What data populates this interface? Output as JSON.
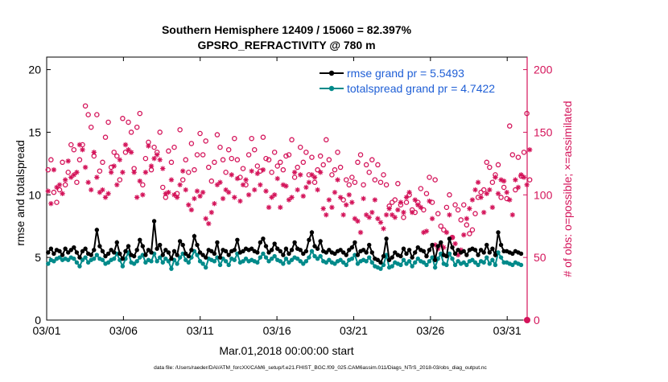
{
  "chart_data": {
    "type": "line",
    "title": "Southern Hemisphere 12409 / 15060 = 82.397%",
    "subtitle": "GPSRO_REFRACTIVITY @ 780 m",
    "xlabel": "Mar.01,2018 00:00:00 start",
    "ylabel_left": "rmse and totalspread",
    "ylabel_right": "# of obs: o=possible; ×=assimilated",
    "footer": "data file: /Users/raeder/DAI/ATM_forcXX/CAM6_setup/f.e21.FHIST_BGC.f09_025.CAM6assim.011/Diags_NTrS_2018-03/obs_diag_output.nc",
    "xlim": [
      1,
      32.3
    ],
    "ylim_left": [
      0,
      21
    ],
    "ylim_right": [
      0,
      210
    ],
    "x_ticks": [
      1,
      6,
      11,
      16,
      21,
      26,
      31
    ],
    "x_tick_labels": [
      "03/01",
      "03/06",
      "03/11",
      "03/16",
      "03/21",
      "03/26",
      "03/31"
    ],
    "y_left_ticks": [
      "0",
      "5",
      "10",
      "15",
      "20"
    ],
    "y_right_ticks": [
      "0",
      "50",
      "100",
      "150",
      "200"
    ],
    "series": [
      {
        "name": "rmse grand pr = 5.5493",
        "color": "#000000",
        "axis": "left",
        "values": [
          5.4,
          5.7,
          5.3,
          5.6,
          5.5,
          5.2,
          5.7,
          5.4,
          5.6,
          5.8,
          5.4,
          5.0,
          5.5,
          5.7,
          5.3,
          5.2,
          5.6,
          7.2,
          5.9,
          5.5,
          5.1,
          5.3,
          5.6,
          5.4,
          6.2,
          5.3,
          4.9,
          5.5,
          5.9,
          5.2,
          5.1,
          5.6,
          6.4,
          5.9,
          5.2,
          5.6,
          5.4,
          7.9,
          5.7,
          6.0,
          5.2,
          5.6,
          5.4,
          4.9,
          5.5,
          5.2,
          6.3,
          6.0,
          5.3,
          5.1,
          5.6,
          6.7,
          6.0,
          5.4,
          5.2,
          5.0,
          5.6,
          5.5,
          5.3,
          6.2,
          5.0,
          5.6,
          5.5,
          5.2,
          5.5,
          5.6,
          6.4,
          5.4,
          5.5,
          5.7,
          5.6,
          5.7,
          5.5,
          5.4,
          6.2,
          6.5,
          5.9,
          5.4,
          5.6,
          6.1,
          5.7,
          5.5,
          5.2,
          5.7,
          5.3,
          5.6,
          6.2,
          5.7,
          5.6,
          5.3,
          5.5,
          6.4,
          7.0,
          5.9,
          5.7,
          6.3,
          5.5,
          5.4,
          5.6,
          5.4,
          5.3,
          5.5,
          5.6,
          5.4,
          5.2,
          5.6,
          5.8,
          6.2,
          5.2,
          5.5,
          5.6,
          5.4,
          6.0,
          5.4,
          4.9,
          4.8,
          4.6,
          5.1,
          6.5,
          4.8,
          5.0,
          5.4,
          5.2,
          5.1,
          5.7,
          5.3,
          5.6,
          5.0,
          5.4,
          5.8,
          5.6,
          5.5,
          5.1,
          5.6,
          6.0,
          4.8,
          5.9,
          6.2,
          5.2,
          5.1,
          6.5,
          5.8,
          5.3,
          5.6,
          5.4,
          5.5,
          5.2,
          5.6,
          5.7,
          5.6,
          5.2,
          5.6,
          5.4,
          6.0,
          5.4,
          5.7,
          5.2,
          7.0,
          6.0,
          5.5,
          5.5,
          5.4,
          5.3,
          5.5,
          5.4,
          5.3
        ]
      },
      {
        "name": "totalspread grand pr = 4.7422",
        "color": "#008a8a",
        "axis": "left",
        "values": [
          4.5,
          4.8,
          4.7,
          4.9,
          5.0,
          4.8,
          4.9,
          4.8,
          5.0,
          4.9,
          4.6,
          4.3,
          4.8,
          5.0,
          4.6,
          4.8,
          4.9,
          5.2,
          4.9,
          4.8,
          4.5,
          4.6,
          4.8,
          4.9,
          5.3,
          4.8,
          4.3,
          4.9,
          5.4,
          4.6,
          4.5,
          4.7,
          5.0,
          5.2,
          4.6,
          4.8,
          4.7,
          5.3,
          4.7,
          5.0,
          4.6,
          4.9,
          4.7,
          4.1,
          4.8,
          4.5,
          5.0,
          5.3,
          4.8,
          4.6,
          5.0,
          5.5,
          5.2,
          4.7,
          4.5,
          4.2,
          4.9,
          4.8,
          4.7,
          5.0,
          4.4,
          4.9,
          4.7,
          4.4,
          4.9,
          4.8,
          5.3,
          4.6,
          4.7,
          4.9,
          4.7,
          4.8,
          4.7,
          4.6,
          5.0,
          5.3,
          5.0,
          4.7,
          4.9,
          5.1,
          4.8,
          4.7,
          4.5,
          4.9,
          4.6,
          4.8,
          5.0,
          4.9,
          4.7,
          4.5,
          4.7,
          5.0,
          5.5,
          5.1,
          4.9,
          5.1,
          4.7,
          4.6,
          4.8,
          4.6,
          4.5,
          4.7,
          4.8,
          4.6,
          4.4,
          4.8,
          4.9,
          5.2,
          4.5,
          4.7,
          4.8,
          4.7,
          5.0,
          4.6,
          4.3,
          4.2,
          4.1,
          4.4,
          5.2,
          4.2,
          4.3,
          4.6,
          4.5,
          4.4,
          4.8,
          4.5,
          4.7,
          4.3,
          4.6,
          4.9,
          4.7,
          4.6,
          4.4,
          4.7,
          5.0,
          4.2,
          4.9,
          5.3,
          4.5,
          4.4,
          5.3,
          4.9,
          4.4,
          4.7,
          4.5,
          4.6,
          4.4,
          4.7,
          4.8,
          4.6,
          4.4,
          4.7,
          4.6,
          5.0,
          4.5,
          4.8,
          4.4,
          5.4,
          5.0,
          4.6,
          4.6,
          4.5,
          4.4,
          4.6,
          4.5,
          4.4
        ]
      },
      {
        "name": "possible",
        "color": "#d4145a",
        "axis": "right",
        "marker": "circle",
        "values": [
          120,
          128,
          102,
          94,
          104,
          126,
          108,
          118,
          140,
          136,
          110,
          128,
          140,
          171,
          164,
          154,
          131,
          164,
          119,
          126,
          146,
          158,
          122,
          134,
          131,
          112,
          161,
          134,
          158,
          150,
          121,
          154,
          165,
          108,
          129,
          142,
          120,
          138,
          134,
          150,
          106,
          98,
          135,
          126,
          138,
          101,
          152,
          112,
          128,
          118,
          141,
          120,
          132,
          149,
          132,
          143,
          122,
          111,
          126,
          148,
          138,
          128,
          118,
          136,
          129,
          145,
          128,
          114,
          121,
          108,
          132,
          145,
          136,
          123,
          119,
          146,
          129,
          128,
          118,
          134,
          123,
          126,
          120,
          131,
          132,
          144,
          114,
          122,
          138,
          126,
          134,
          116,
          130,
          110,
          120,
          131,
          124,
          144,
          128,
          116,
          120,
          134,
          122,
          96,
          112,
          108,
          114,
          110,
          126,
          132,
          108,
          124,
          118,
          128,
          112,
          124,
          110,
          116,
          108,
          91,
          94,
          96,
          109,
          92,
          82,
          94,
          100,
          88,
          86,
          94,
          105,
          88,
          101,
          114,
          94,
          112,
          85,
          75,
          72,
          90,
          100,
          66,
          92,
          88,
          80,
          92,
          76,
          69,
          72,
          85,
          98,
          102,
          104,
          126,
          122,
          110,
          116,
          124,
          98,
          106,
          97,
          155,
          132,
          104,
          130,
          115,
          134,
          165,
          112
        ],
        "assimilated": [
          103,
          93,
          120,
          106,
          108,
          101,
          112,
          127,
          114,
          116,
          118,
          140,
          136,
          122,
          110,
          104,
          134,
          114,
          102,
          104,
          98,
          101,
          118,
          123,
          108,
          128,
          118,
          140,
          136,
          134,
          118,
          98,
          111,
          100,
          118,
          139,
          123,
          129,
          132,
          128,
          121,
          101,
          102,
          112,
          100,
          98,
          108,
          119,
          104,
          92,
          88,
          97,
          103,
          99,
          102,
          81,
          77,
          86,
          93,
          108,
          110,
          97,
          104,
          102,
          116,
          98,
          113,
          95,
          108,
          112,
          100,
          119,
          104,
          117,
          108,
          120,
          103,
          90,
          98,
          100,
          113,
          90,
          108,
          107,
          96,
          98,
          118,
          104,
          116,
          99,
          106,
          110,
          116,
          114,
          104,
          118,
          89,
          84,
          96,
          90,
          102,
          112,
          98,
          84,
          92,
          100,
          94,
          81,
          79,
          70,
          97,
          84,
          82,
          86,
          96,
          81,
          78,
          73,
          84,
          89,
          84,
          82,
          88,
          94,
          86,
          98,
          102,
          86,
          96,
          92,
          90,
          70,
          71,
          95,
          81,
          60,
          57,
          60,
          58,
          70,
          84,
          66,
          61,
          52,
          56,
          68,
          81,
          89,
          96,
          104,
          110,
          98,
          86,
          101,
          104,
          90,
          114,
          101,
          112,
          111,
          102,
          96,
          84,
          112,
          106,
          116,
          114,
          108,
          136
        ]
      }
    ]
  }
}
